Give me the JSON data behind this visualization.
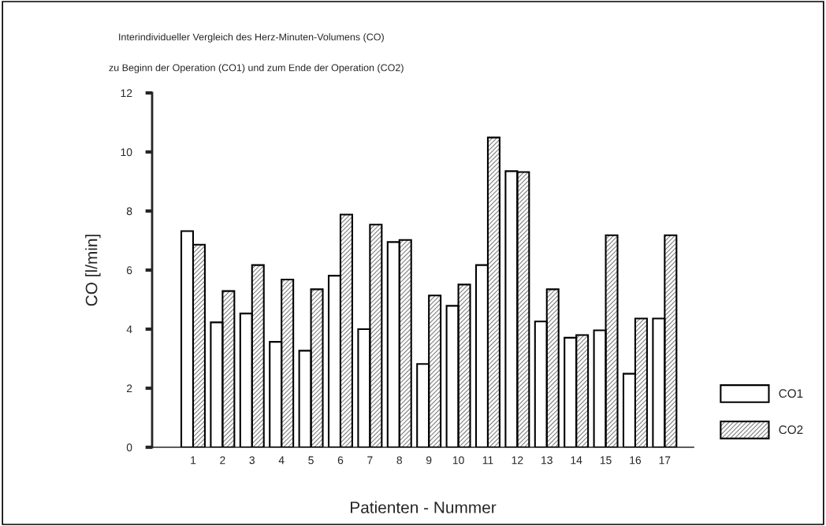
{
  "chart_data": {
    "type": "bar",
    "title": "Interindividueller Vergleich des Herz-Minuten-Volumens (CO)",
    "subtitle": "zu Beginn der Operation (CO1) und zum Ende der Operation (CO2)",
    "xlabel": "Patienten - Nummer",
    "ylabel": "CO [l/min]",
    "categories": [
      "1",
      "2",
      "3",
      "4",
      "5",
      "6",
      "7",
      "8",
      "9",
      "10",
      "11",
      "12",
      "13",
      "14",
      "15",
      "16",
      "17"
    ],
    "series": [
      {
        "name": "CO1",
        "color": "#ffffff",
        "values": [
          7.32,
          4.23,
          4.53,
          3.57,
          3.27,
          5.81,
          4.0,
          6.95,
          2.82,
          4.79,
          6.17,
          9.35,
          4.26,
          3.71,
          3.96,
          2.49,
          4.36
        ]
      },
      {
        "name": "CO2",
        "color": "#808080",
        "values": [
          6.86,
          5.29,
          6.17,
          5.68,
          5.35,
          7.88,
          7.54,
          7.02,
          5.14,
          5.51,
          10.49,
          9.32,
          5.35,
          3.8,
          7.18,
          4.36,
          7.18
        ]
      }
    ],
    "ylim": [
      0,
      12
    ],
    "yticks": [
      0,
      2,
      4,
      6,
      8,
      10,
      12
    ],
    "grid": false,
    "legend": "right"
  }
}
